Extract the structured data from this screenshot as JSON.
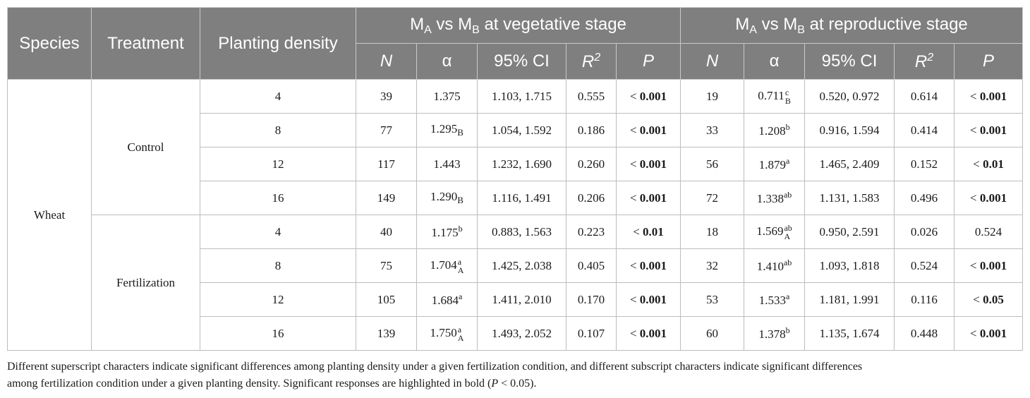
{
  "headers": {
    "species": "Species",
    "treatment": "Treatment",
    "density": "Planting density",
    "veg_group": {
      "m": "M",
      "a": "A",
      "vs": " vs ",
      "b": "B",
      "rest": " at vegetative stage"
    },
    "rep_group": {
      "m": "M",
      "a": "A",
      "vs": " vs ",
      "b": "B",
      "rest": " at reproductive stage"
    },
    "sub": {
      "n": "N",
      "alpha": "α",
      "ci": "95% CI",
      "r": "R",
      "r_sup": "2",
      "p": "P"
    }
  },
  "species": "Wheat",
  "treatments": [
    "Control",
    "Fertilization"
  ],
  "rows": [
    {
      "density": "4",
      "veg": {
        "n": "39",
        "alpha": "1.375",
        "sup": "",
        "sub": "",
        "ci": "1.103, 1.715",
        "r2": "0.555",
        "p": "< ",
        "p_bold": "0.001"
      },
      "rep": {
        "n": "19",
        "alpha": "0.711",
        "sup": "c",
        "sub": "B",
        "ci": "0.520, 0.972",
        "r2": "0.614",
        "p": "< ",
        "p_bold": "0.001"
      }
    },
    {
      "density": "8",
      "veg": {
        "n": "77",
        "alpha": "1.295",
        "sup": "",
        "sub": "B",
        "ci": "1.054, 1.592",
        "r2": "0.186",
        "p": "< ",
        "p_bold": "0.001"
      },
      "rep": {
        "n": "33",
        "alpha": "1.208",
        "sup": "b",
        "sub": "",
        "ci": "0.916, 1.594",
        "r2": "0.414",
        "p": "< ",
        "p_bold": "0.001"
      }
    },
    {
      "density": "12",
      "veg": {
        "n": "117",
        "alpha": "1.443",
        "sup": "",
        "sub": "",
        "ci": "1.232, 1.690",
        "r2": "0.260",
        "p": "< ",
        "p_bold": "0.001"
      },
      "rep": {
        "n": "56",
        "alpha": "1.879",
        "sup": "a",
        "sub": "",
        "ci": "1.465, 2.409",
        "r2": "0.152",
        "p": "< ",
        "p_bold": "0.01"
      }
    },
    {
      "density": "16",
      "veg": {
        "n": "149",
        "alpha": "1.290",
        "sup": "",
        "sub": "B",
        "ci": "1.116, 1.491",
        "r2": "0.206",
        "p": "< ",
        "p_bold": "0.001"
      },
      "rep": {
        "n": "72",
        "alpha": "1.338",
        "sup": "ab",
        "sub": "",
        "ci": "1.131, 1.583",
        "r2": "0.496",
        "p": "< ",
        "p_bold": "0.001"
      }
    },
    {
      "density": "4",
      "veg": {
        "n": "40",
        "alpha": "1.175",
        "sup": "b",
        "sub": "",
        "ci": "0.883, 1.563",
        "r2": "0.223",
        "p": "< ",
        "p_bold": "0.01"
      },
      "rep": {
        "n": "18",
        "alpha": "1.569",
        "sup": "ab",
        "sub": "A",
        "ci": "0.950, 2.591",
        "r2": "0.026",
        "p": "0.524",
        "p_bold": ""
      }
    },
    {
      "density": "8",
      "veg": {
        "n": "75",
        "alpha": "1.704",
        "sup": "a",
        "sub": "A",
        "ci": "1.425, 2.038",
        "r2": "0.405",
        "p": "< ",
        "p_bold": "0.001"
      },
      "rep": {
        "n": "32",
        "alpha": "1.410",
        "sup": "ab",
        "sub": "",
        "ci": "1.093, 1.818",
        "r2": "0.524",
        "p": "< ",
        "p_bold": "0.001"
      }
    },
    {
      "density": "12",
      "veg": {
        "n": "105",
        "alpha": "1.684",
        "sup": "a",
        "sub": "",
        "ci": "1.411, 2.010",
        "r2": "0.170",
        "p": "< ",
        "p_bold": "0.001"
      },
      "rep": {
        "n": "53",
        "alpha": "1.533",
        "sup": "a",
        "sub": "",
        "ci": "1.181, 1.991",
        "r2": "0.116",
        "p": "< ",
        "p_bold": "0.05"
      }
    },
    {
      "density": "16",
      "veg": {
        "n": "139",
        "alpha": "1.750",
        "sup": "a",
        "sub": "A",
        "ci": "1.493, 2.052",
        "r2": "0.107",
        "p": "< ",
        "p_bold": "0.001"
      },
      "rep": {
        "n": "60",
        "alpha": "1.378",
        "sup": "b",
        "sub": "",
        "ci": "1.135, 1.674",
        "r2": "0.448",
        "p": "< ",
        "p_bold": "0.001"
      }
    }
  ],
  "footnote": {
    "line1": "Different superscript characters indicate significant differences among planting density under a given fertilization condition, and different subscript characters indicate significant differences",
    "line2_a": "among fertilization condition under a given planting density. Significant responses are highlighted in bold (",
    "line2_p": "P",
    "line2_b": " < 0.05)."
  }
}
